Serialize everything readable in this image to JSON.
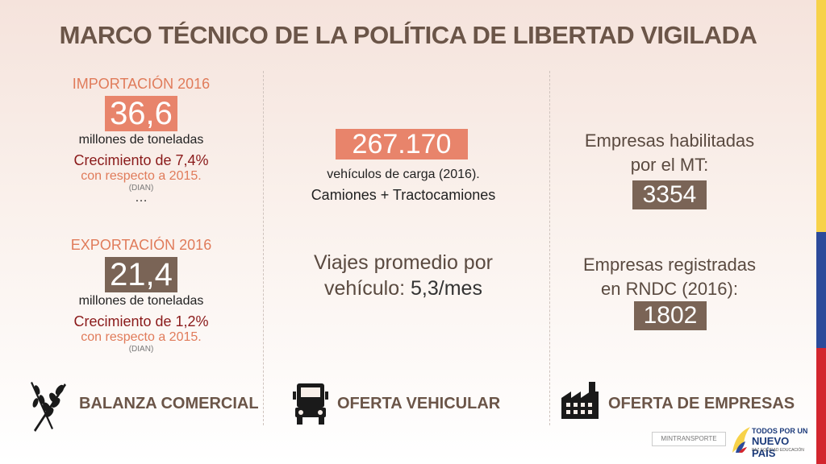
{
  "title": "MARCO TÉCNICO DE LA POLÍTICA DE LIBERTAD VIGILADA",
  "import": {
    "label": "IMPORTACIÓN 2016",
    "value": "36,6",
    "unit": "millones de toneladas",
    "growth": "Crecimiento de 7,4%",
    "respect": "con respecto a 2015.",
    "source": "(DIAN)"
  },
  "ellipsis": "…",
  "export": {
    "label": "EXPORTACIÓN 2016",
    "value": "21,4",
    "unit": "millones de toneladas",
    "growth": "Crecimiento de 1,2%",
    "respect": "con respecto a 2015.",
    "source": "(DIAN)"
  },
  "vehicles": {
    "value": "267.170",
    "desc": "vehículos de carga (2016).",
    "types": "Camiones + Tractocamiones",
    "trips_line1": "Viajes promedio por",
    "trips_line2_label": "vehículo: ",
    "trips_line2_value": "5,3/mes"
  },
  "companies": {
    "enabled_line1": "Empresas habilitadas",
    "enabled_line2": "por el MT:",
    "enabled_value": "3354",
    "registered_line1": "Empresas registradas",
    "registered_line2": "en RNDC (2016):",
    "registered_value": "1802"
  },
  "sections": {
    "trade": "BALANZA COMERCIAL",
    "vehicle": "OFERTA VEHICULAR",
    "companies": "OFERTA DE EMPRESAS"
  },
  "footer": {
    "ministry": "MINTRANSPORTE",
    "slogan_line1": "TODOS POR UN",
    "slogan_line2": "NUEVO PAÍS",
    "slogan_line3": "PAZ  EQUIDAD  EDUCACIÓN"
  },
  "colors": {
    "salmon": "#e8846b",
    "brown": "#7a6456",
    "title": "#6b5548",
    "flag_yellow": "#f7d24a",
    "flag_blue": "#2c4a9a",
    "flag_red": "#d3262e"
  }
}
